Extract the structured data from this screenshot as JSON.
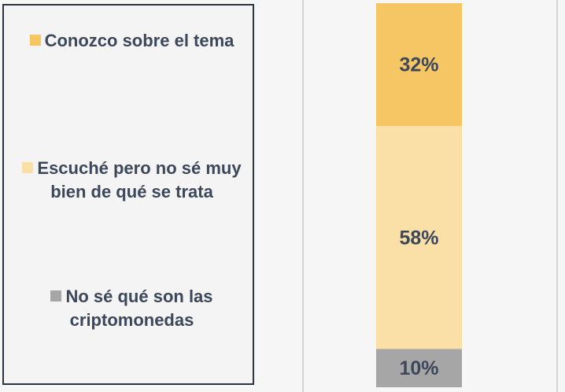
{
  "chart_data": {
    "type": "bar",
    "stacked": true,
    "categories": [
      null
    ],
    "series": [
      {
        "name": "Conozco sobre el tema",
        "color": "#f5c663",
        "values": [
          32
        ],
        "value_labels": [
          "32%"
        ]
      },
      {
        "name": "Escuché pero no sé muy bien de qué se trata",
        "color": "#fae0a7",
        "values": [
          58
        ],
        "value_labels": [
          "58%"
        ]
      },
      {
        "name": "No sé qué son las criptomonedas",
        "color": "#a6a6a6",
        "values": [
          10
        ],
        "value_labels": [
          "10%"
        ]
      }
    ]
  }
}
